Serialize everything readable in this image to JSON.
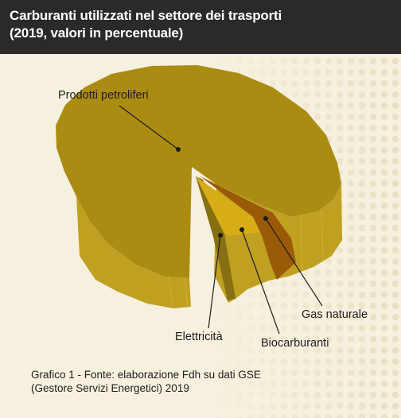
{
  "header": {
    "title_line1": "Carburanti utilizzati nel settore dei trasporti",
    "title_line2": "(2019, valori in percentuale)"
  },
  "caption": {
    "line1": "Grafico 1 - Fonte: elaborazione Fdh su dati GSE",
    "line2": "(Gestore Servizi Energetici) 2019"
  },
  "colors": {
    "band": "#2b2a28",
    "background": "#f6f0df",
    "petroliferi_top": "#ab8c12",
    "petroliferi_side": "#bfa021",
    "elettricita_top": "#a78a10",
    "elettricita_side": "#877012",
    "biocarburanti_top": "#d7ad18",
    "biocarburanti_side": "#c09b14",
    "gas_top": "#9a5a08",
    "gas_side": "#7e4706"
  },
  "chart_data": {
    "type": "pie",
    "style": "3d-exploded",
    "title": "Carburanti utilizzati nel settore dei trasporti",
    "subtitle": "(2019, valori in percentuale)",
    "slices": [
      {
        "label": "Prodotti petroliferi",
        "value": 91.5
      },
      {
        "label": "Gas naturale",
        "value": 3.0
      },
      {
        "label": "Biocarburanti",
        "value": 3.5
      },
      {
        "label": "Elettricità",
        "value": 2.0
      }
    ]
  }
}
